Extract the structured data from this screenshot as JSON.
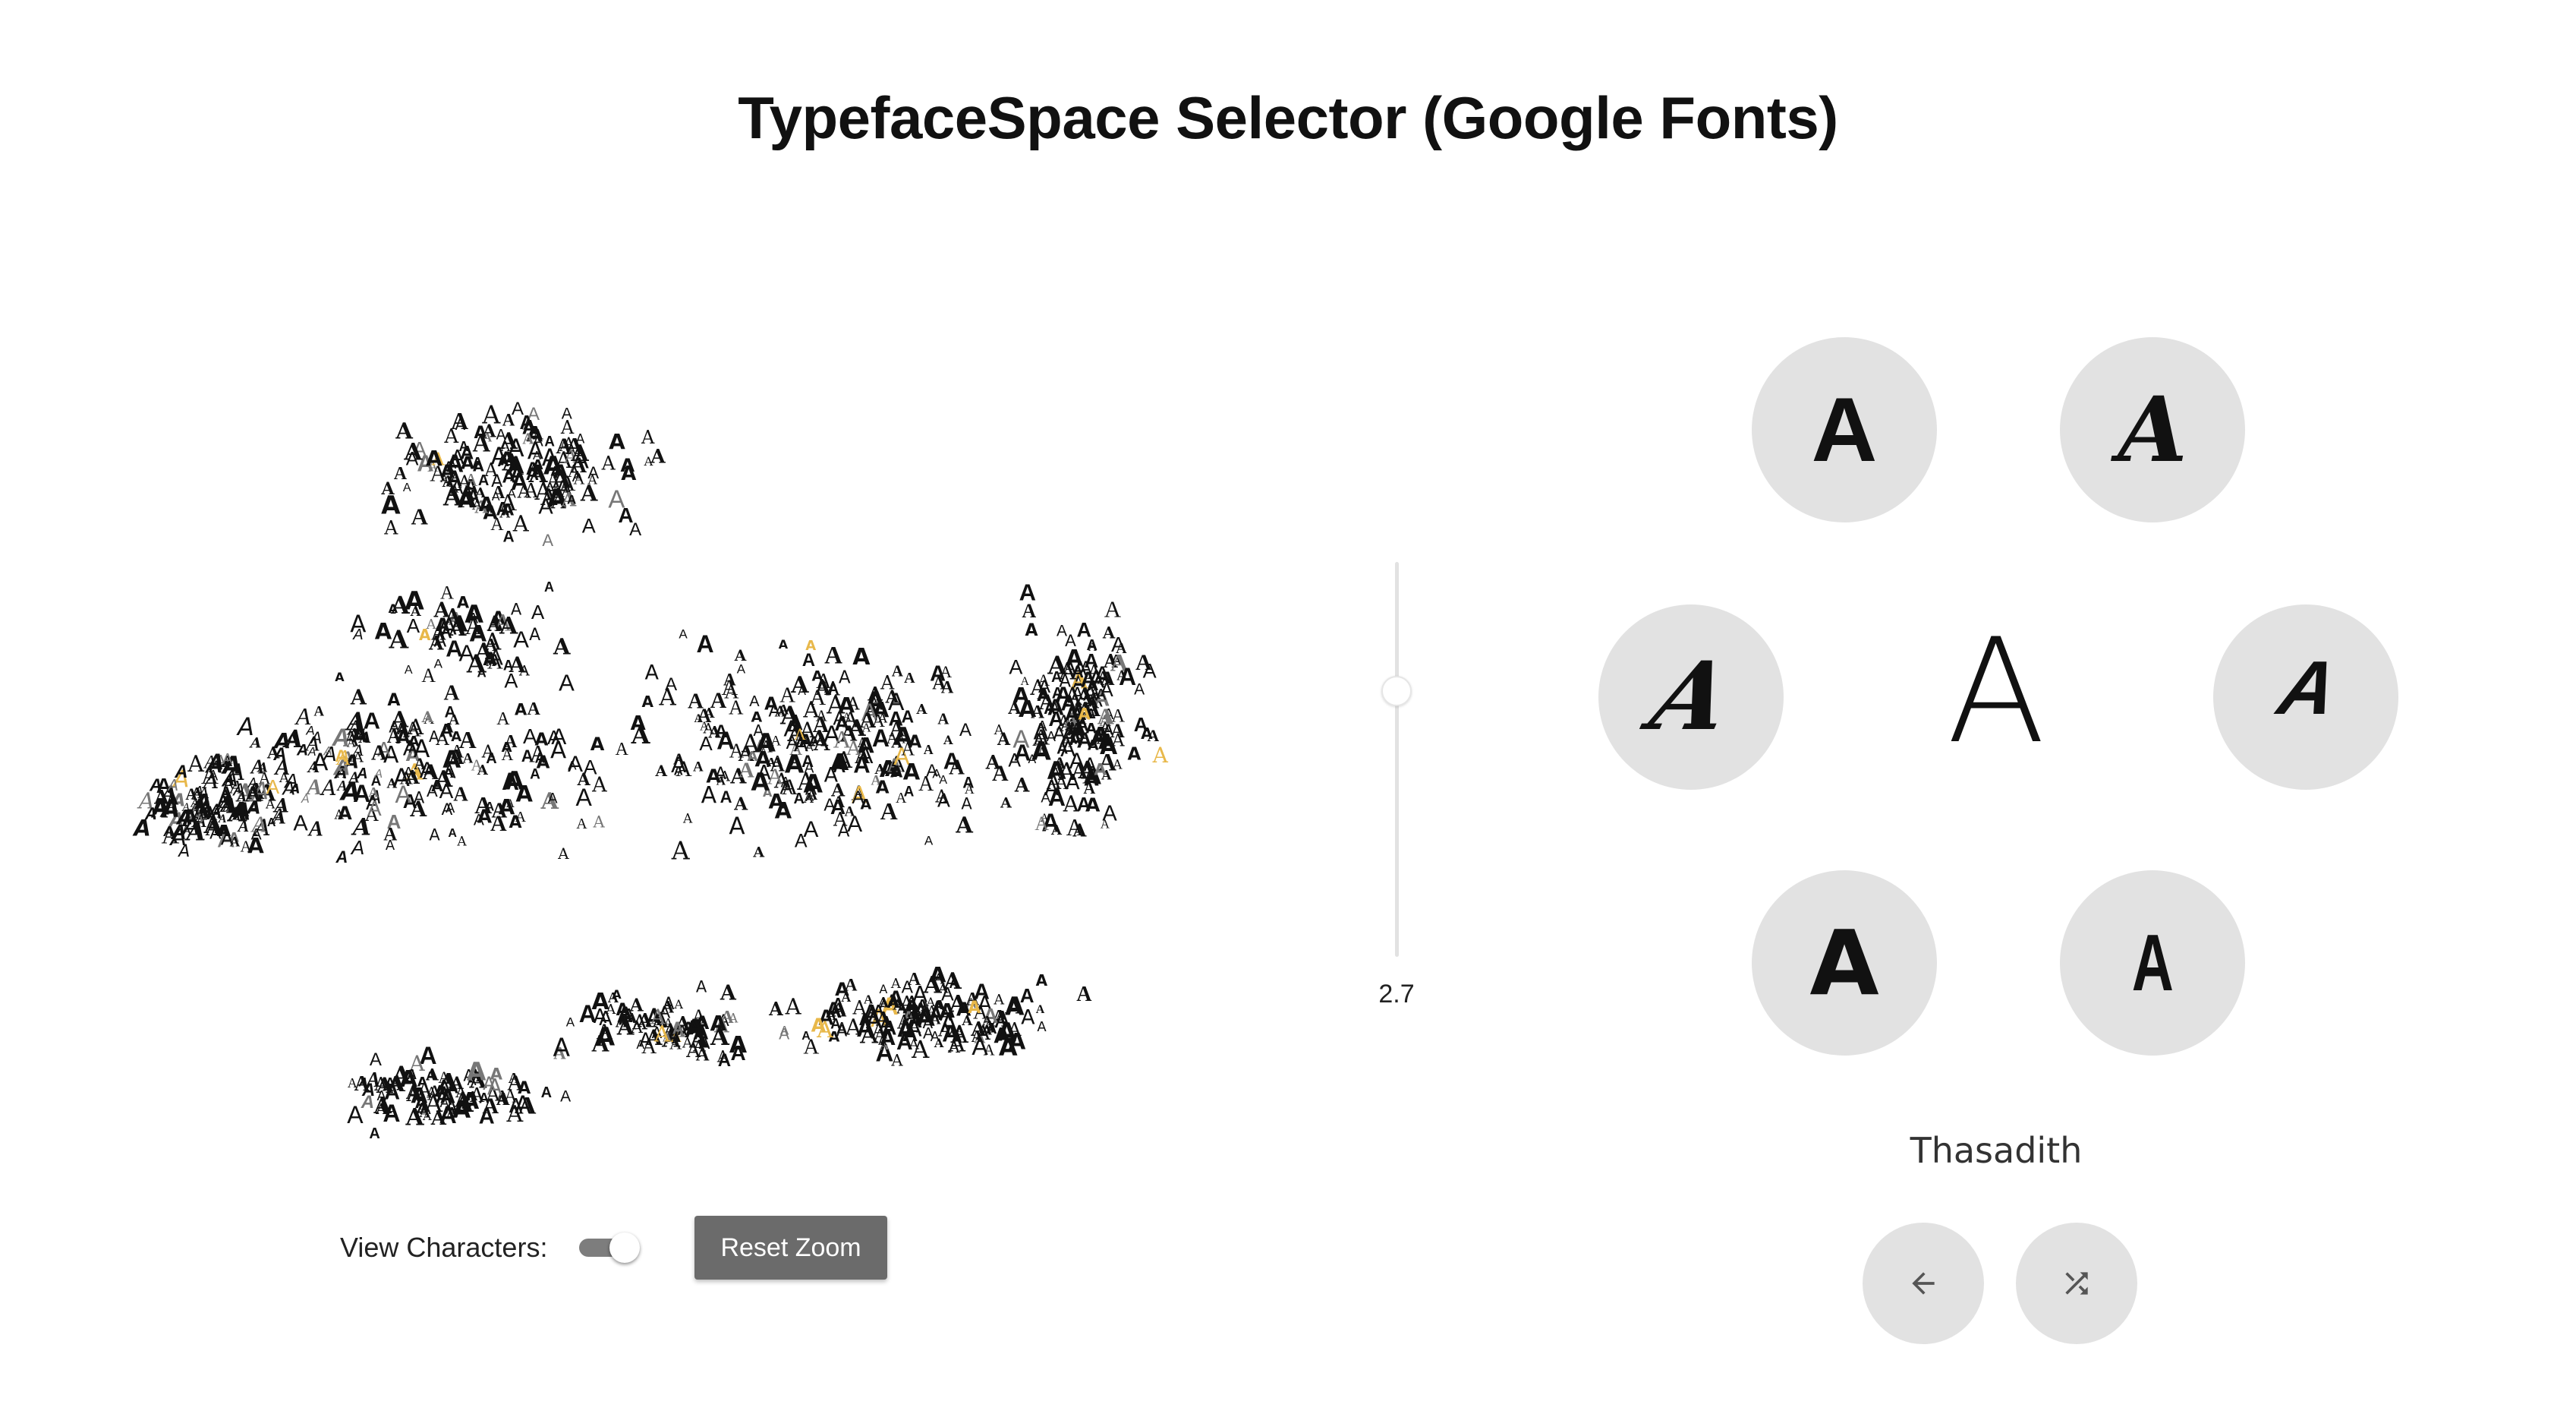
{
  "page": {
    "title": "TypefaceSpace Selector (Google Fonts)"
  },
  "map": {
    "glyph": "A"
  },
  "controls": {
    "view_characters_label": "View Characters:",
    "view_characters_on": true,
    "reset_zoom_label": "Reset Zoom"
  },
  "zoom_slider": {
    "value": "2.7"
  },
  "selector": {
    "center_glyph": "A",
    "font_name": "Thasadith",
    "neighbors": [
      {
        "glyph": "A",
        "icon": "font-preview"
      },
      {
        "glyph": "A",
        "icon": "font-preview"
      },
      {
        "glyph": "A",
        "icon": "font-preview"
      },
      {
        "glyph": "A",
        "icon": "font-preview"
      },
      {
        "glyph": "A",
        "icon": "font-preview"
      },
      {
        "glyph": "A",
        "icon": "font-preview"
      }
    ],
    "back_icon": "arrow-left-icon",
    "shuffle_icon": "shuffle-icon"
  },
  "colors": {
    "circle_bg": "#e2e2e2",
    "button_bg": "#6b6b6b",
    "highlight": "#e8b84a"
  }
}
